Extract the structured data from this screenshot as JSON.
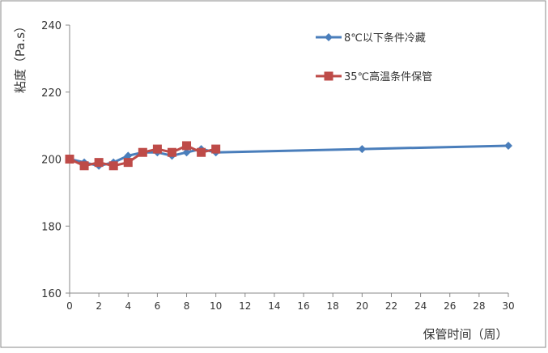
{
  "chart_data": {
    "type": "line",
    "title": "",
    "xlabel": "保管时间（周）",
    "ylabel": "粘度（Pa.s）",
    "xlim": [
      0,
      30
    ],
    "ylim": [
      160,
      240
    ],
    "xticks": [
      0,
      2,
      4,
      6,
      8,
      10,
      12,
      14,
      16,
      18,
      20,
      22,
      24,
      26,
      28,
      30
    ],
    "yticks": [
      160,
      180,
      200,
      220,
      240
    ],
    "grid": false,
    "legend": "top-right",
    "series": [
      {
        "name": "8℃以下条件冷藏",
        "color": "#4a7ebb",
        "marker": "diamond",
        "x": [
          0,
          1,
          2,
          3,
          4,
          5,
          6,
          7,
          8,
          9,
          10,
          20,
          30
        ],
        "y": [
          200,
          199,
          198,
          199,
          201,
          202,
          202,
          201,
          202,
          203,
          202,
          203,
          204
        ]
      },
      {
        "name": "35℃高温条件保管",
        "color": "#be4b48",
        "marker": "square",
        "x": [
          0,
          1,
          2,
          3,
          4,
          5,
          6,
          7,
          8,
          9,
          10
        ],
        "y": [
          200,
          198,
          199,
          198,
          199,
          202,
          203,
          202,
          204,
          202,
          203
        ]
      }
    ]
  }
}
